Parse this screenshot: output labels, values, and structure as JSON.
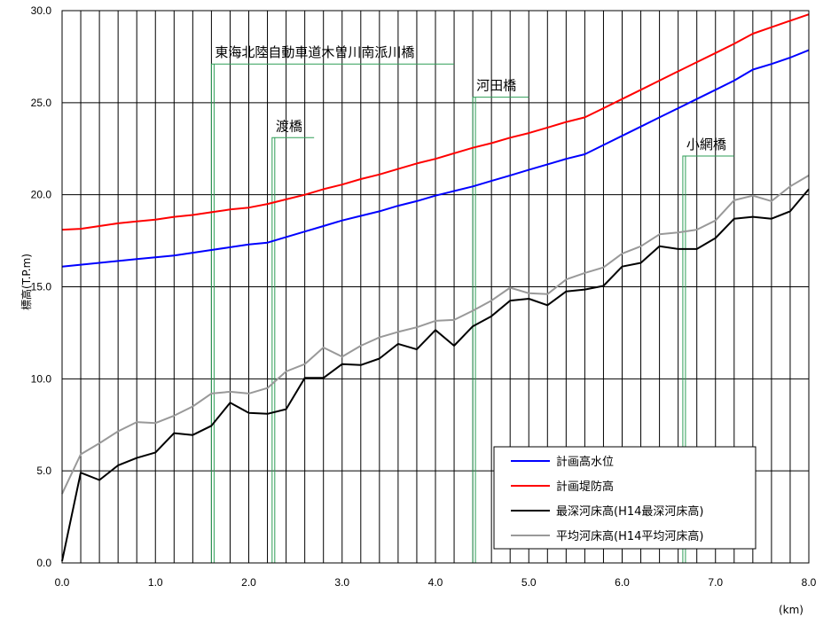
{
  "chart_data": {
    "type": "line",
    "xlabel": "(km)",
    "ylabel": "標高(T.P.m)",
    "xlim": [
      0,
      8
    ],
    "ylim": [
      0,
      30
    ],
    "x_ticks": [
      "0.0",
      "1.0",
      "2.0",
      "3.0",
      "4.0",
      "5.0",
      "6.0",
      "7.0",
      "8.0"
    ],
    "y_ticks": [
      "0.0",
      "5.0",
      "10.0",
      "15.0",
      "20.0",
      "25.0",
      "30.0"
    ],
    "grid": true,
    "legend_position": "bottom-right",
    "bridges": [
      {
        "name": "東海北陸自動車道木曽川南派川橋",
        "x_start": 1.6,
        "x_end": 4.2,
        "height": 27.1
      },
      {
        "name": "渡橋",
        "x_start": 2.25,
        "x_end": 2.7,
        "height": 23.1
      },
      {
        "name": "河田橋",
        "x_start": 4.4,
        "x_end": 5.0,
        "height": 25.3
      },
      {
        "name": "小網橋",
        "x_start": 6.65,
        "x_end": 7.2,
        "height": 22.1
      }
    ],
    "series": [
      {
        "name": "計画高水位",
        "color": "#0000ff",
        "x": [
          0,
          0.2,
          0.4,
          0.6,
          0.8,
          1.0,
          1.2,
          1.4,
          1.6,
          1.8,
          2.0,
          2.2,
          2.4,
          2.6,
          2.8,
          3.0,
          3.2,
          3.4,
          3.6,
          3.8,
          4.0,
          4.2,
          4.4,
          4.6,
          4.8,
          5.0,
          5.2,
          5.4,
          5.6,
          5.8,
          6.0,
          6.2,
          6.4,
          6.6,
          6.8,
          7.0,
          7.2,
          7.4,
          7.6,
          7.8,
          8.0
        ],
        "values": [
          16.1,
          16.2,
          16.3,
          16.4,
          16.5,
          16.6,
          16.7,
          16.85,
          17.0,
          17.15,
          17.3,
          17.4,
          17.7,
          18.0,
          18.3,
          18.6,
          18.85,
          19.1,
          19.4,
          19.65,
          19.95,
          20.2,
          20.45,
          20.75,
          21.05,
          21.35,
          21.65,
          21.95,
          22.2,
          22.7,
          23.2,
          23.7,
          24.2,
          24.7,
          25.2,
          25.7,
          26.2,
          26.8,
          27.1,
          27.45,
          27.85
        ]
      },
      {
        "name": "計画堤防高",
        "color": "#ff0000",
        "x": [
          0,
          0.2,
          0.4,
          0.6,
          0.8,
          1.0,
          1.2,
          1.4,
          1.6,
          1.8,
          2.0,
          2.2,
          2.4,
          2.6,
          2.8,
          3.0,
          3.2,
          3.4,
          3.6,
          3.8,
          4.0,
          4.2,
          4.4,
          4.6,
          4.8,
          5.0,
          5.2,
          5.4,
          5.6,
          5.8,
          6.0,
          6.2,
          6.4,
          6.6,
          6.8,
          7.0,
          7.2,
          7.4,
          7.6,
          7.8,
          8.0
        ],
        "values": [
          18.1,
          18.15,
          18.3,
          18.45,
          18.55,
          18.65,
          18.8,
          18.9,
          19.05,
          19.2,
          19.3,
          19.5,
          19.75,
          20.0,
          20.3,
          20.55,
          20.85,
          21.1,
          21.4,
          21.7,
          21.95,
          22.25,
          22.55,
          22.8,
          23.1,
          23.35,
          23.65,
          23.95,
          24.2,
          24.7,
          25.2,
          25.7,
          26.2,
          26.7,
          27.2,
          27.7,
          28.2,
          28.75,
          29.1,
          29.45,
          29.8
        ]
      },
      {
        "name": "最深河床高(H14最深河床高)",
        "color": "#000000",
        "x": [
          0,
          0.2,
          0.4,
          0.6,
          0.8,
          1.0,
          1.2,
          1.4,
          1.6,
          1.8,
          2.0,
          2.2,
          2.4,
          2.6,
          2.8,
          3.0,
          3.2,
          3.4,
          3.6,
          3.8,
          4.0,
          4.2,
          4.4,
          4.6,
          4.8,
          5.0,
          5.2,
          5.4,
          5.6,
          5.8,
          6.0,
          6.2,
          6.4,
          6.6,
          6.8,
          7.0,
          7.2,
          7.4,
          7.6,
          7.8,
          8.0
        ],
        "values": [
          0.1,
          4.9,
          4.5,
          5.3,
          5.7,
          6.0,
          7.05,
          6.95,
          7.45,
          8.7,
          8.15,
          8.1,
          8.35,
          10.05,
          10.05,
          10.8,
          10.75,
          11.1,
          11.9,
          11.6,
          12.65,
          11.8,
          12.85,
          13.4,
          14.25,
          14.35,
          14.0,
          14.75,
          14.85,
          15.05,
          16.1,
          16.3,
          17.2,
          17.05,
          17.05,
          17.65,
          18.7,
          18.8,
          18.7,
          19.1,
          20.3
        ]
      },
      {
        "name": "平均河床高(H14平均河床高)",
        "color": "#999999",
        "x": [
          0,
          0.2,
          0.4,
          0.6,
          0.8,
          1.0,
          1.2,
          1.4,
          1.6,
          1.8,
          2.0,
          2.2,
          2.4,
          2.6,
          2.8,
          3.0,
          3.2,
          3.4,
          3.6,
          3.8,
          4.0,
          4.2,
          4.4,
          4.6,
          4.8,
          5.0,
          5.2,
          5.4,
          5.6,
          5.8,
          6.0,
          6.2,
          6.4,
          6.6,
          6.8,
          7.0,
          7.2,
          7.4,
          7.6,
          7.8,
          8.0
        ],
        "values": [
          3.75,
          5.9,
          6.5,
          7.15,
          7.65,
          7.6,
          8.0,
          8.5,
          9.2,
          9.3,
          9.2,
          9.5,
          10.4,
          10.8,
          11.7,
          11.2,
          11.8,
          12.25,
          12.55,
          12.8,
          13.15,
          13.2,
          13.7,
          14.25,
          14.95,
          14.65,
          14.6,
          15.4,
          15.75,
          16.05,
          16.8,
          17.2,
          17.85,
          17.95,
          18.1,
          18.6,
          19.7,
          19.95,
          19.65,
          20.45,
          21.05
        ]
      }
    ]
  }
}
